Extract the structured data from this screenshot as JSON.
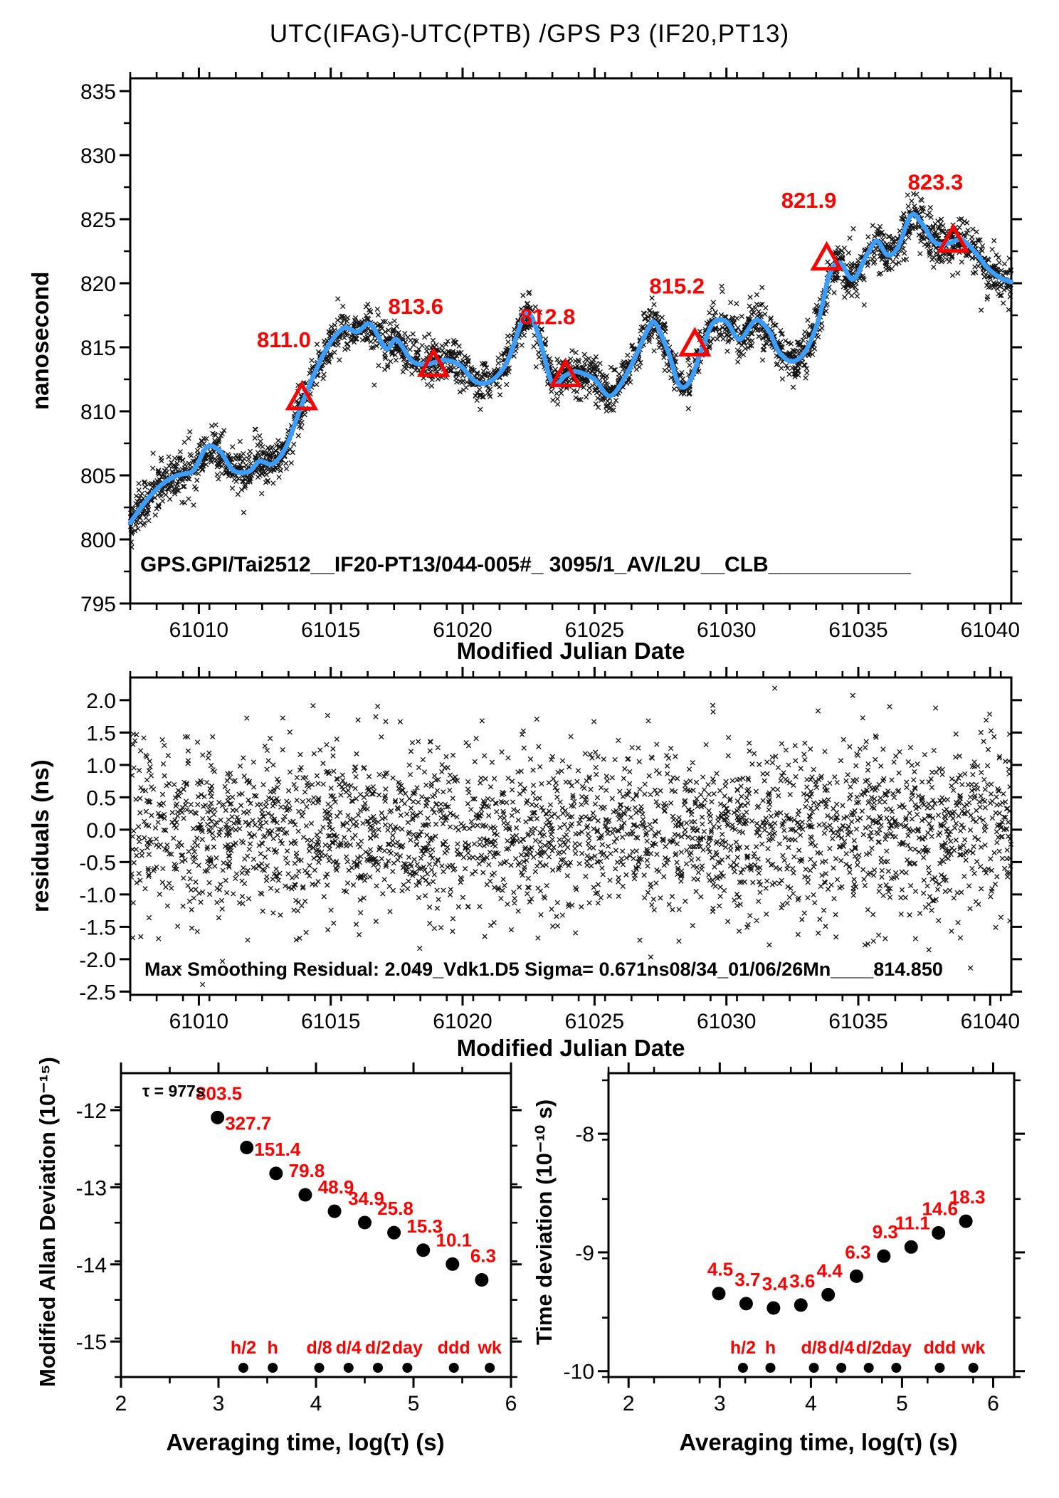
{
  "title": "UTC(IFAG)-UTC(PTB)  /GPS  P3  (IF20,PT13)",
  "colors": {
    "red": "#ff0000",
    "blue": "#3b9dfc",
    "ink": "#000000",
    "bg": "#ffffff"
  },
  "chart_data": [
    {
      "id": "phase",
      "type": "scatter",
      "xlabel": "Modified Julian Date",
      "ylabel": "nanosecond",
      "xlim": [
        61007.4,
        61040.8
      ],
      "ylim": [
        795,
        836
      ],
      "xticks": [
        61010,
        61015,
        61020,
        61025,
        61030,
        61035,
        61040
      ],
      "yticks": [
        795,
        800,
        805,
        810,
        815,
        820,
        825,
        830,
        835
      ],
      "x_minor_step": 1,
      "y_minor_step": 2.5,
      "annotation": "GPS.GPI/Tai2512__IF20-PT13/044-005#_  3095/1_AV/L2U__CLB____________",
      "smoothed_line": [
        [
          61007.4,
          801.3
        ],
        [
          61008.0,
          803.0
        ],
        [
          61008.6,
          804.3
        ],
        [
          61009.2,
          805.0
        ],
        [
          61009.8,
          805.4
        ],
        [
          61010.3,
          807.2
        ],
        [
          61010.8,
          806.9
        ],
        [
          61011.3,
          805.4
        ],
        [
          61011.9,
          805.3
        ],
        [
          61012.3,
          806.1
        ],
        [
          61012.8,
          805.9
        ],
        [
          61013.3,
          807.2
        ],
        [
          61013.9,
          810.5
        ],
        [
          61014.4,
          813.0
        ],
        [
          61014.9,
          815.1
        ],
        [
          61015.5,
          816.5
        ],
        [
          61016.0,
          816.2
        ],
        [
          61016.5,
          816.8
        ],
        [
          61017.1,
          814.9
        ],
        [
          61017.5,
          815.6
        ],
        [
          61018.1,
          813.9
        ],
        [
          61018.7,
          813.7
        ],
        [
          61019.3,
          814.0
        ],
        [
          61019.9,
          813.6
        ],
        [
          61020.5,
          812.3
        ],
        [
          61021.1,
          812.4
        ],
        [
          61021.7,
          813.9
        ],
        [
          61022.2,
          816.8
        ],
        [
          61022.5,
          817.7
        ],
        [
          61022.9,
          815.8
        ],
        [
          61023.4,
          812.2
        ],
        [
          61023.9,
          812.8
        ],
        [
          61024.3,
          813.1
        ],
        [
          61025.0,
          812.5
        ],
        [
          61025.6,
          811.2
        ],
        [
          61026.3,
          813.2
        ],
        [
          61027.0,
          816.3
        ],
        [
          61027.3,
          816.9
        ],
        [
          61027.8,
          814.6
        ],
        [
          61028.2,
          812.1
        ],
        [
          61028.6,
          812.3
        ],
        [
          61029.1,
          815.0
        ],
        [
          61029.5,
          816.9
        ],
        [
          61030.0,
          817.0
        ],
        [
          61030.5,
          815.6
        ],
        [
          61031.1,
          817.1
        ],
        [
          61031.6,
          816.3
        ],
        [
          61032.0,
          814.6
        ],
        [
          61032.5,
          813.9
        ],
        [
          61033.0,
          814.7
        ],
        [
          61033.5,
          817.2
        ],
        [
          61033.9,
          820.6
        ],
        [
          61034.3,
          821.6
        ],
        [
          61034.8,
          820.3
        ],
        [
          61035.3,
          822.1
        ],
        [
          61035.7,
          823.3
        ],
        [
          61036.1,
          822.2
        ],
        [
          61036.5,
          822.8
        ],
        [
          61037.0,
          825.3
        ],
        [
          61037.4,
          824.7
        ],
        [
          61037.9,
          823.2
        ],
        [
          61038.4,
          823.1
        ],
        [
          61038.9,
          823.4
        ],
        [
          61039.4,
          822.5
        ],
        [
          61039.9,
          821.2
        ],
        [
          61040.4,
          820.4
        ],
        [
          61040.8,
          820.1
        ]
      ],
      "markers": [
        {
          "label": "811.0",
          "mjd": 61013.9,
          "ns": 811.0
        },
        {
          "label": "813.6",
          "mjd": 61018.9,
          "ns": 813.6
        },
        {
          "label": "812.8",
          "mjd": 61023.9,
          "ns": 812.8
        },
        {
          "label": "815.2",
          "mjd": 61028.8,
          "ns": 815.2
        },
        {
          "label": "821.9",
          "mjd": 61033.8,
          "ns": 821.9
        },
        {
          "label": "823.3",
          "mjd": 61038.6,
          "ns": 823.3
        }
      ],
      "scatter": {
        "seed": 77,
        "count": 2850,
        "sigma": 0.85
      }
    },
    {
      "id": "residuals",
      "type": "scatter",
      "xlabel": "Modified Julian Date",
      "ylabel": "residuals (ns)",
      "xlim": [
        61007.4,
        61040.8
      ],
      "ylim": [
        -2.55,
        2.35
      ],
      "xticks": [
        61010,
        61015,
        61020,
        61025,
        61030,
        61035,
        61040
      ],
      "yticks": [
        2.0,
        1.5,
        1.0,
        0.5,
        0.0,
        -0.5,
        -1.0,
        -1.5,
        -2.0,
        -2.5
      ],
      "x_minor_step": 1,
      "annotation": "Max Smoothing Residual: 2.049_Vdk1.D5  Sigma= 0.671ns08/34_01/06/26Mn____814.850",
      "scatter": {
        "seed": 123,
        "count": 2700,
        "sigma": 0.671
      }
    },
    {
      "id": "mdev",
      "type": "scatter",
      "xlabel": "Averaging time, log(τ) (s)",
      "ylabel": "Modified Allan Deviation (10⁻¹⁵)",
      "note": "τ = 977s",
      "xlim": [
        2,
        6
      ],
      "ylim": [
        -15.46,
        -11.52
      ],
      "xticks": [
        2,
        3,
        4,
        5,
        6
      ],
      "yticks": [
        -12,
        -13,
        -14,
        -15
      ],
      "x_minor_step": 0.5,
      "y_minor_step": 0.5,
      "unit_exponent": -15,
      "x": [
        2.99,
        3.29,
        3.59,
        3.89,
        4.19,
        4.5,
        4.8,
        5.1,
        5.4,
        5.7
      ],
      "values": [
        803.5,
        327.7,
        151.4,
        79.8,
        48.9,
        34.9,
        25.8,
        15.3,
        10.1,
        6.3
      ],
      "time_markers": {
        "labels": [
          "h/2",
          "h",
          "d/8",
          "d/4",
          "d/2",
          "day",
          "ddd",
          "wk"
        ],
        "log_tau": [
          3.255,
          3.556,
          4.033,
          4.334,
          4.635,
          4.937,
          5.414,
          5.782
        ]
      }
    },
    {
      "id": "tdev",
      "type": "scatter",
      "xlabel": "Averaging time, log(τ) (s)",
      "ylabel": "Time deviation (10⁻¹⁰ s)",
      "xlim": [
        1.78,
        6.23
      ],
      "ylim": [
        -10.05,
        -7.49
      ],
      "xticks": [
        2,
        3,
        4,
        5,
        6
      ],
      "yticks": [
        -8,
        -9,
        -10
      ],
      "x_minor_step": 0.5,
      "y_minor_step": 0.5,
      "unit_exponent": -10,
      "x": [
        2.99,
        3.29,
        3.59,
        3.89,
        4.19,
        4.5,
        4.8,
        5.1,
        5.4,
        5.7
      ],
      "values": [
        4.5,
        3.7,
        3.4,
        3.6,
        4.4,
        6.3,
        9.3,
        11.1,
        14.6,
        18.3
      ],
      "time_markers": {
        "labels": [
          "h/2",
          "h",
          "d/8",
          "d/4",
          "d/2",
          "day",
          "ddd",
          "wk"
        ],
        "log_tau": [
          3.255,
          3.556,
          4.033,
          4.334,
          4.635,
          4.937,
          5.414,
          5.782
        ]
      }
    }
  ]
}
